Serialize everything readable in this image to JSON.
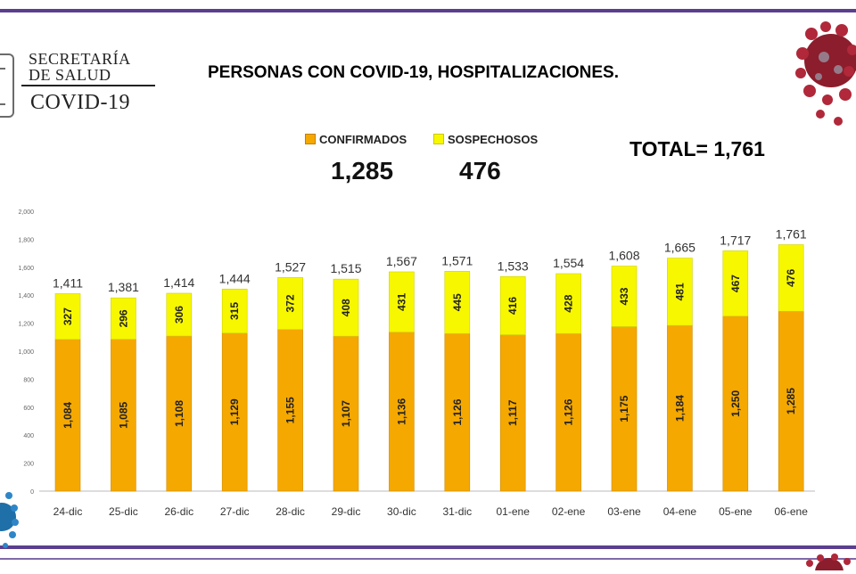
{
  "logo": {
    "line1": "SECRETARÍA",
    "line2": "DE SALUD",
    "line3": "COVID-19"
  },
  "header": {
    "title": "PERSONAS CON COVID-19, HOSPITALIZACIONES."
  },
  "summary": {
    "confirmados_label": "CONFIRMADOS",
    "sospechosos_label": "SOSPECHOSOS",
    "confirmados_value": "1,285",
    "sospechosos_value": "476",
    "total": "TOTAL= 1,761"
  },
  "colors": {
    "confirmados": "#f5a800",
    "sospechosos": "#f7f700",
    "purple_band": "#5b3f8f",
    "virus": "#b0283a"
  },
  "chart_data": {
    "type": "bar",
    "stacked": true,
    "categories": [
      "24-dic",
      "25-dic",
      "26-dic",
      "27-dic",
      "28-dic",
      "29-dic",
      "30-dic",
      "31-dic",
      "01-ene",
      "02-ene",
      "03-ene",
      "04-ene",
      "05-ene",
      "06-ene"
    ],
    "series": [
      {
        "name": "CONFIRMADOS",
        "values": [
          1084,
          1085,
          1108,
          1129,
          1155,
          1107,
          1136,
          1126,
          1117,
          1126,
          1175,
          1184,
          1250,
          1285
        ]
      },
      {
        "name": "SOSPECHOSOS",
        "values": [
          327,
          296,
          306,
          315,
          372,
          408,
          431,
          445,
          416,
          428,
          433,
          481,
          467,
          476
        ]
      }
    ],
    "totals": [
      1411,
      1381,
      1414,
      1444,
      1527,
      1515,
      1567,
      1571,
      1533,
      1554,
      1608,
      1665,
      1717,
      1761
    ],
    "yticks": [
      0,
      200,
      400,
      600,
      800,
      1000,
      1200,
      1400,
      1600,
      1800,
      2000
    ],
    "ylim": [
      0,
      2000
    ],
    "grid": false,
    "legend": "top-center",
    "title": "PERSONAS CON COVID-19, HOSPITALIZACIONES."
  }
}
